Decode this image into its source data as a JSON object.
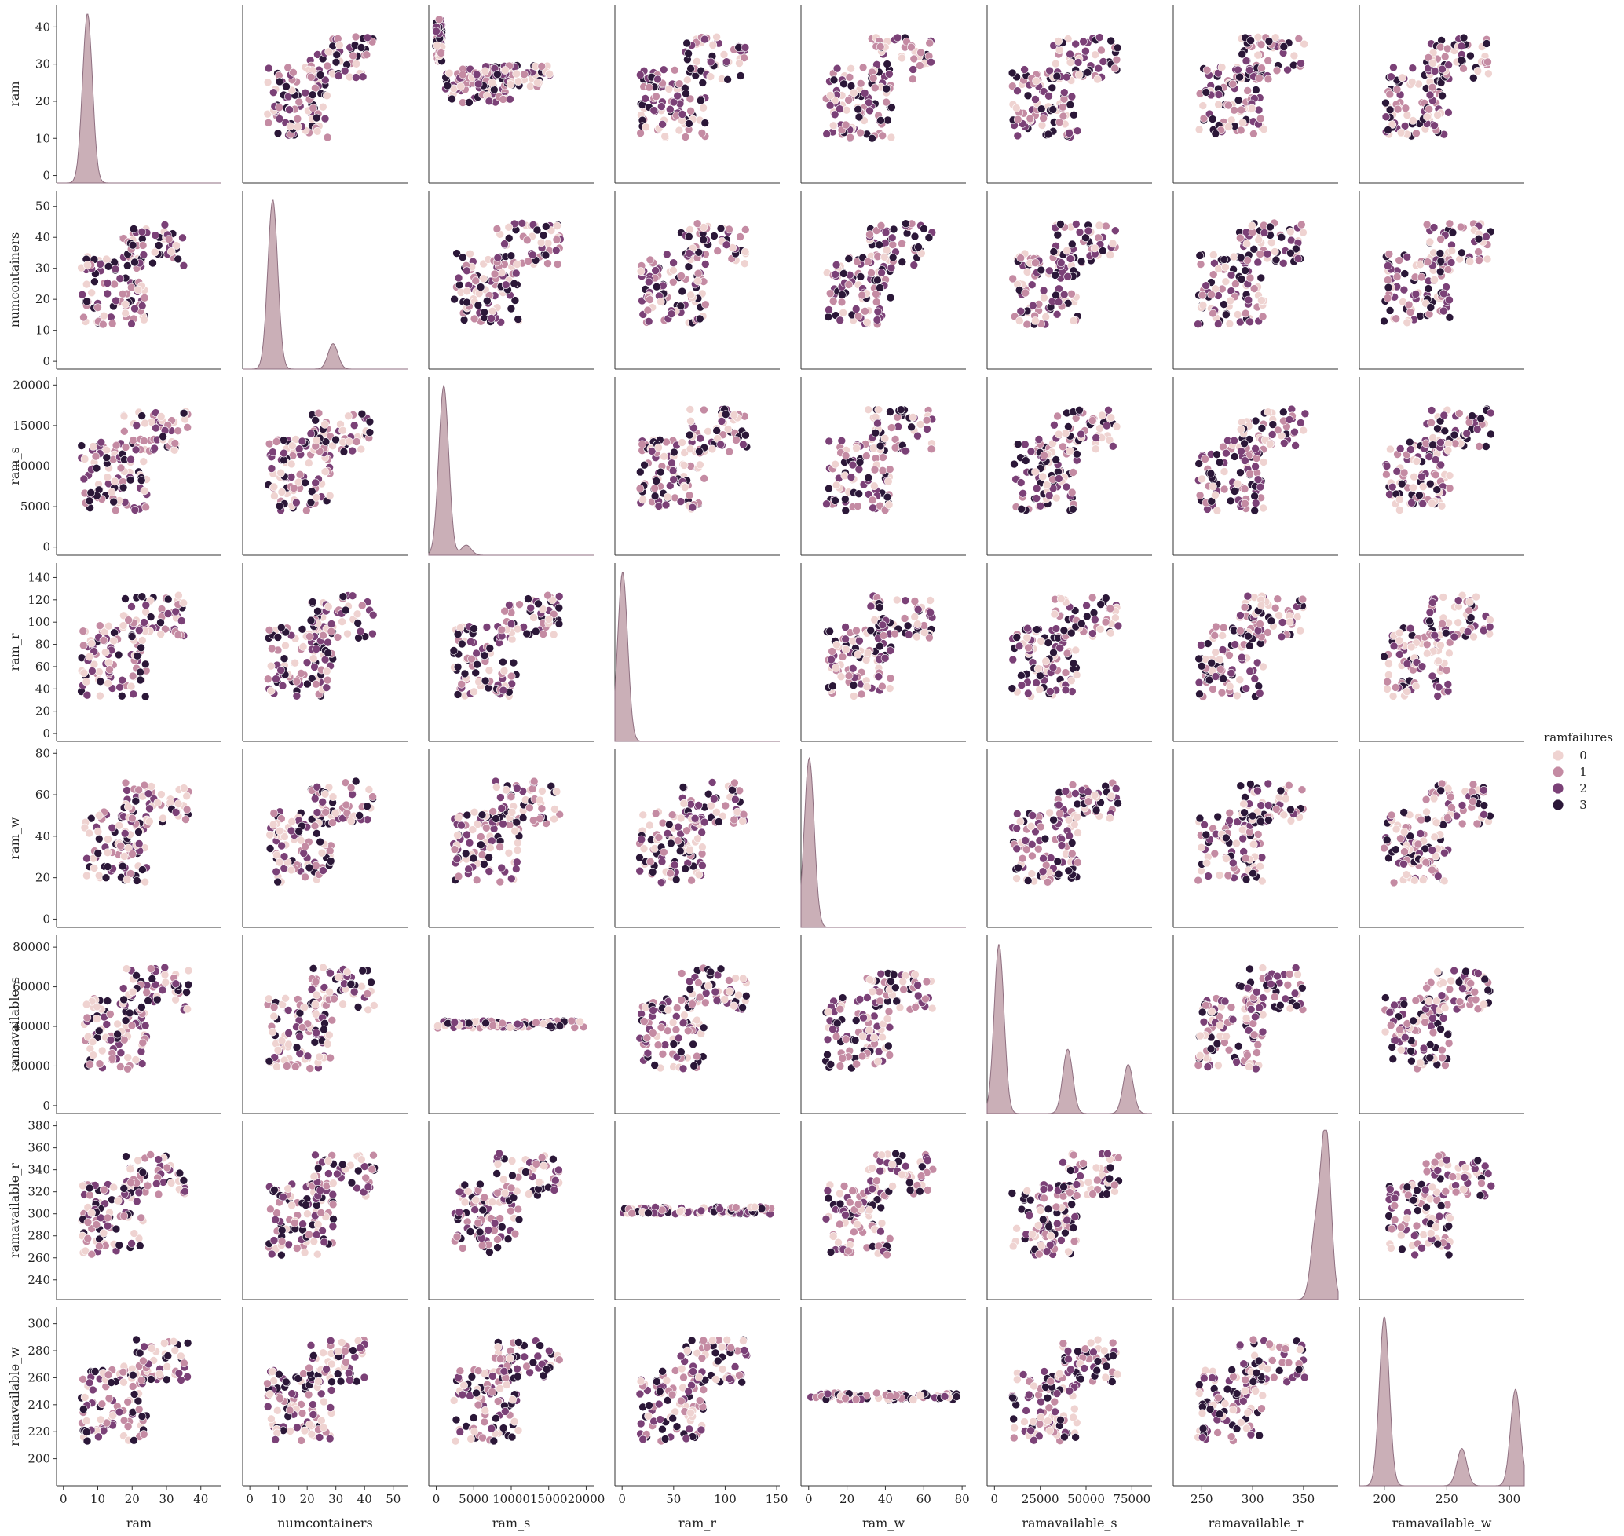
{
  "chart_data": {
    "type": "scatter",
    "kind": "pairplot",
    "diag_kind": "kde",
    "variables": [
      "ram",
      "numcontainers",
      "ram_s",
      "ram_r",
      "ram_w",
      "ramavailable_s",
      "ramavailable_r",
      "ramavailable_w"
    ],
    "axes": {
      "ram": {
        "label": "ram",
        "lim": [
          -2,
          46
        ],
        "ticks": [
          0,
          10,
          20,
          30,
          40
        ],
        "tick_labels": [
          "0",
          "10",
          "20",
          "30",
          "40"
        ]
      },
      "numcontainers": {
        "label": "numcontainers",
        "lim": [
          -2.5,
          55
        ],
        "ticks": [
          0,
          10,
          20,
          30,
          40,
          50
        ],
        "tick_labels": [
          "0",
          "10",
          "20",
          "30",
          "40",
          "50"
        ]
      },
      "ram_s": {
        "label": "ram_s",
        "lim": [
          -1000,
          21000
        ],
        "ticks": [
          0,
          5000,
          10000,
          15000,
          20000
        ],
        "tick_labels": [
          "0",
          "5000",
          "10000",
          "15000",
          "20000"
        ]
      },
      "ram_r": {
        "label": "ram_r",
        "lim": [
          -7,
          153
        ],
        "ticks": [
          0,
          20,
          40,
          60,
          80,
          100,
          120,
          140
        ],
        "tick_labels": [
          "0",
          "20",
          "40",
          "60",
          "80",
          "100",
          "120",
          "140"
        ],
        "x_ticks": [
          0,
          50,
          100,
          150
        ],
        "x_tick_labels": [
          "0",
          "50",
          "100",
          "150"
        ]
      },
      "ram_w": {
        "label": "ram_w",
        "lim": [
          -4,
          82
        ],
        "ticks": [
          0,
          20,
          40,
          60,
          80
        ],
        "tick_labels": [
          "0",
          "20",
          "40",
          "60",
          "80"
        ]
      },
      "ramavailable_s": {
        "label": "ramavailable_s",
        "lim": [
          -4000,
          86000
        ],
        "ticks": [
          0,
          20000,
          40000,
          60000,
          80000
        ],
        "tick_labels": [
          "0",
          "20000",
          "40000",
          "60000",
          "80000"
        ],
        "x_ticks": [
          0,
          25000,
          50000,
          75000
        ],
        "x_tick_labels": [
          "0",
          "25000",
          "50000",
          "75000"
        ]
      },
      "ramavailable_r": {
        "label": "ramavailable_r",
        "lim": [
          222,
          384
        ],
        "ticks": [
          240,
          260,
          280,
          300,
          320,
          340,
          360,
          380
        ],
        "tick_labels": [
          "240",
          "260",
          "280",
          "300",
          "320",
          "340",
          "360",
          "380"
        ],
        "x_ticks": [
          250,
          300,
          350
        ],
        "x_tick_labels": [
          "250",
          "300",
          "350"
        ]
      },
      "ramavailable_w": {
        "label": "ramavailable_w",
        "lim": [
          180,
          312
        ],
        "ticks": [
          200,
          220,
          240,
          260,
          280,
          300
        ],
        "tick_labels": [
          "200",
          "220",
          "240",
          "260",
          "280",
          "300"
        ],
        "x_ticks": [
          200,
          250,
          300
        ],
        "x_tick_labels": [
          "200",
          "250",
          "300"
        ]
      }
    },
    "hue": {
      "variable": "ramfailures",
      "legend_title": "ramfailures",
      "legend_placement": "right",
      "levels": [
        {
          "label": "0",
          "color": "#efd3d1"
        },
        {
          "label": "1",
          "color": "#c48ba3"
        },
        {
          "label": "2",
          "color": "#7b4177"
        },
        {
          "label": "3",
          "color": "#2b1738"
        }
      ]
    },
    "diag_peaks": {
      "ram": [
        [
          7,
          1.0
        ]
      ],
      "numcontainers": [
        [
          8,
          1.0
        ],
        [
          29,
          0.15
        ]
      ],
      "ram_s": [
        [
          1000,
          1.0
        ],
        [
          4000,
          0.06
        ]
      ],
      "ram_r": [
        [
          0.5,
          1.0
        ]
      ],
      "ram_w": [
        [
          0.3,
          1.0
        ]
      ],
      "ramavailable_s": [
        [
          2500,
          1.0
        ],
        [
          40000,
          0.38
        ],
        [
          73000,
          0.29
        ]
      ],
      "ramavailable_r": [
        [
          362,
          0.4
        ],
        [
          372,
          1.0
        ]
      ],
      "ramavailable_w": [
        [
          200,
          1.0
        ],
        [
          262,
          0.22
        ],
        [
          305,
          0.57
        ]
      ]
    },
    "grid": false
  }
}
